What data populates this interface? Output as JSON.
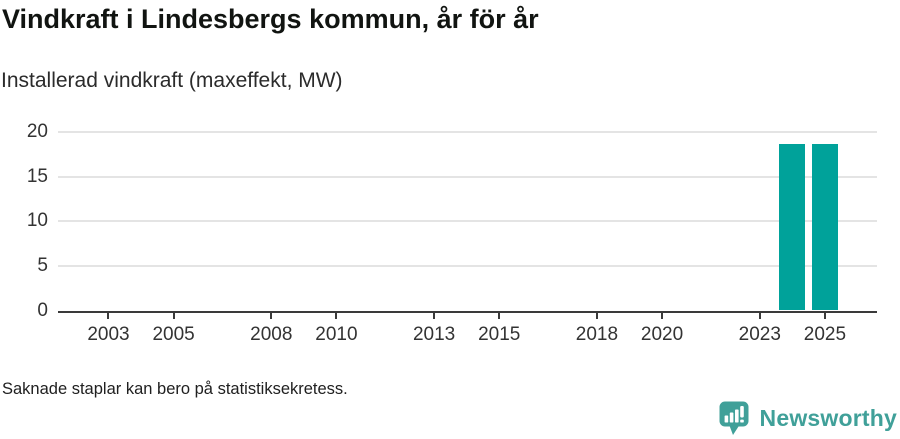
{
  "header": {
    "title": "Vindkraft i Lindesbergs kommun, år för år",
    "subtitle": "Installerad vindkraft (maxeffekt, MW)"
  },
  "footer": {
    "note": "Saknade staplar kan bero på statistiksekretess.",
    "logo_text": "Newsworthy"
  },
  "colors": {
    "bar": "#00a29a",
    "axis": "#3a3a3a",
    "grid": "#e4e4e4",
    "tick_label": "#333333",
    "logo": "#40a099"
  },
  "chart_data": {
    "type": "bar",
    "title": "Vindkraft i Lindesbergs kommun, år för år",
    "xlabel": "",
    "ylabel": "Installerad vindkraft (maxeffekt, MW)",
    "unit": "MW",
    "x": [
      2024,
      2025
    ],
    "values": [
      18.6,
      18.6
    ],
    "xlim": [
      2001.45,
      2026.6
    ],
    "ylim": [
      0,
      20
    ],
    "xticks": [
      2003,
      2005,
      2008,
      2010,
      2013,
      2015,
      2018,
      2020,
      2023,
      2025
    ],
    "yticks": [
      0,
      5,
      10,
      15,
      20
    ],
    "bar_width_years": 0.8,
    "grid": "horizontal-only",
    "legend": "none",
    "note": "Bars only present for 2024 and 2025; all earlier years empty"
  }
}
